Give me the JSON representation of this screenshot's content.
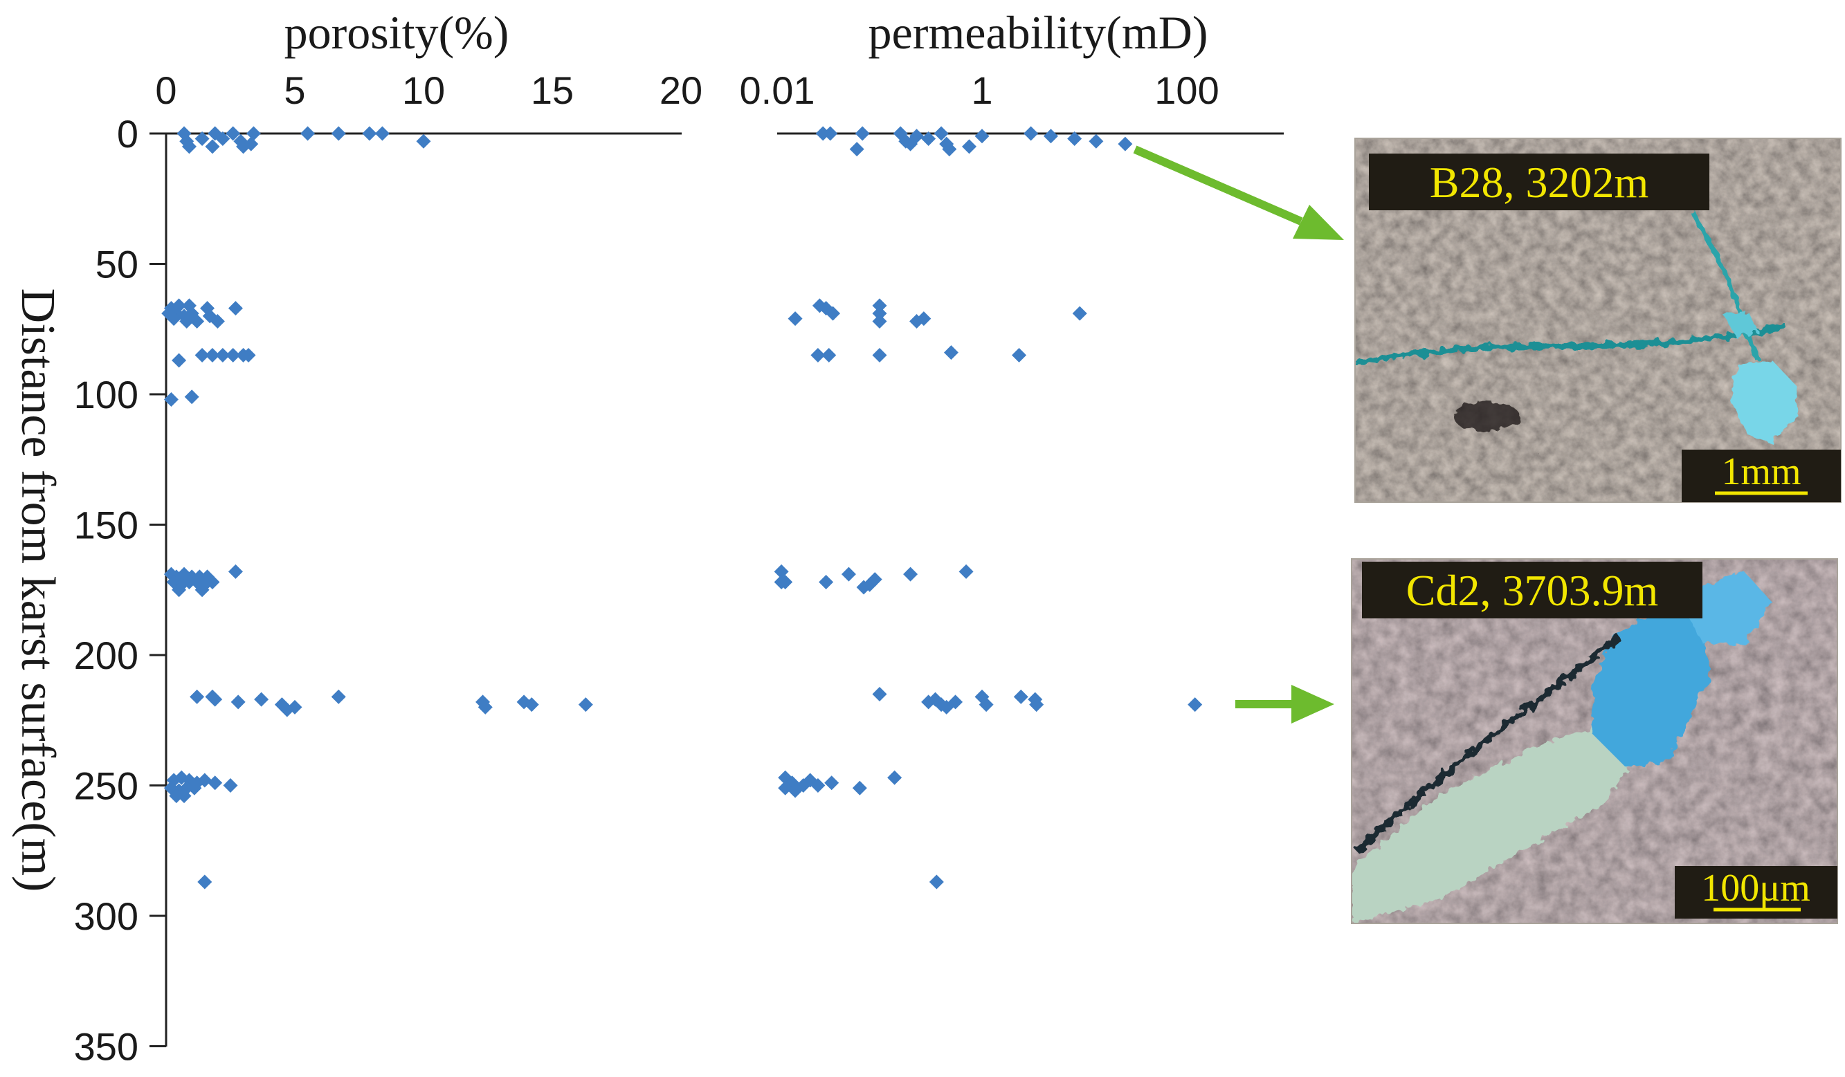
{
  "chart_data": [
    {
      "type": "scatter",
      "title": "porosity(%)",
      "xlabel": "porosity(%)",
      "ylabel": "Distance from karst surface(m)",
      "xlim": [
        0,
        20
      ],
      "ylim": [
        0,
        350
      ],
      "y_inverted": true,
      "x_ticks": [
        "0",
        "5",
        "10",
        "15",
        "20"
      ],
      "y_ticks": [
        "0",
        "50",
        "100",
        "150",
        "200",
        "250",
        "300",
        "350"
      ],
      "marker": "diamond",
      "marker_color": "#3f7dc4",
      "series": [
        {
          "points": [
            [
              0.7,
              0
            ],
            [
              1.9,
              0
            ],
            [
              2.6,
              0
            ],
            [
              3.4,
              0
            ],
            [
              5.5,
              0
            ],
            [
              6.7,
              0
            ],
            [
              7.9,
              0
            ],
            [
              8.4,
              0
            ],
            [
              0.8,
              3
            ],
            [
              1.4,
              2
            ],
            [
              2.2,
              2
            ],
            [
              2.9,
              3
            ],
            [
              10.0,
              3
            ],
            [
              0.9,
              5
            ],
            [
              1.8,
              5
            ],
            [
              3.0,
              5
            ],
            [
              3.3,
              4
            ],
            [
              0.2,
              67
            ],
            [
              0.5,
              66
            ],
            [
              0.9,
              66
            ],
            [
              1.6,
              67
            ],
            [
              2.7,
              67
            ],
            [
              0.1,
              69
            ],
            [
              0.4,
              69
            ],
            [
              0.7,
              70
            ],
            [
              1.0,
              69
            ],
            [
              1.7,
              70
            ],
            [
              0.3,
              71
            ],
            [
              0.8,
              72
            ],
            [
              1.2,
              72
            ],
            [
              2.0,
              72
            ],
            [
              1.4,
              85
            ],
            [
              1.8,
              85
            ],
            [
              2.2,
              85
            ],
            [
              2.6,
              85
            ],
            [
              3.0,
              85
            ],
            [
              3.2,
              85
            ],
            [
              0.5,
              87
            ],
            [
              0.2,
              102
            ],
            [
              1.0,
              101
            ],
            [
              0.2,
              169
            ],
            [
              0.4,
              170
            ],
            [
              0.7,
              169
            ],
            [
              1.0,
              170
            ],
            [
              1.3,
              170
            ],
            [
              1.6,
              170
            ],
            [
              2.7,
              168
            ],
            [
              0.3,
              172
            ],
            [
              0.6,
              173
            ],
            [
              0.9,
              172
            ],
            [
              1.2,
              172
            ],
            [
              1.5,
              173
            ],
            [
              1.8,
              172
            ],
            [
              0.5,
              175
            ],
            [
              1.4,
              175
            ],
            [
              1.2,
              216
            ],
            [
              1.8,
              216
            ],
            [
              1.9,
              217
            ],
            [
              2.8,
              218
            ],
            [
              3.7,
              217
            ],
            [
              4.5,
              219
            ],
            [
              5.0,
              220
            ],
            [
              4.7,
              221
            ],
            [
              6.7,
              216
            ],
            [
              12.3,
              218
            ],
            [
              12.4,
              220
            ],
            [
              13.9,
              218
            ],
            [
              14.2,
              219
            ],
            [
              16.3,
              219
            ],
            [
              0.3,
              248
            ],
            [
              0.6,
              247
            ],
            [
              0.9,
              248
            ],
            [
              1.2,
              249
            ],
            [
              1.5,
              248
            ],
            [
              1.9,
              249
            ],
            [
              2.5,
              250
            ],
            [
              0.2,
              251
            ],
            [
              0.5,
              252
            ],
            [
              0.8,
              251
            ],
            [
              1.1,
              251
            ],
            [
              0.4,
              254
            ],
            [
              0.7,
              254
            ],
            [
              1.5,
              287
            ]
          ]
        }
      ]
    },
    {
      "type": "scatter",
      "title": "permeability(mD)",
      "xlabel": "permeability(mD)",
      "ylabel": "Distance from karst surface(m)",
      "x_scale": "log",
      "xlim": [
        0.01,
        1000
      ],
      "ylim": [
        0,
        350
      ],
      "y_inverted": true,
      "x_ticks": [
        "0.01",
        "1",
        "100"
      ],
      "x_tick_values": [
        0.01,
        1,
        100
      ],
      "marker": "diamond",
      "marker_color": "#3f7dc4",
      "series": [
        {
          "points": [
            [
              0.028,
              0
            ],
            [
              0.033,
              0
            ],
            [
              0.068,
              0
            ],
            [
              0.16,
              0
            ],
            [
              0.23,
              1
            ],
            [
              0.4,
              0
            ],
            [
              1.0,
              1
            ],
            [
              3.0,
              0
            ],
            [
              4.7,
              1
            ],
            [
              8.0,
              2
            ],
            [
              13.0,
              3
            ],
            [
              25.0,
              4
            ],
            [
              0.2,
              4
            ],
            [
              0.3,
              2
            ],
            [
              0.45,
              4
            ],
            [
              0.75,
              5
            ],
            [
              0.06,
              6
            ],
            [
              0.18,
              3
            ],
            [
              0.48,
              6
            ],
            [
              0.026,
              66
            ],
            [
              0.1,
              66
            ],
            [
              0.1,
              69
            ],
            [
              0.1,
              72
            ],
            [
              0.03,
              67
            ],
            [
              0.035,
              69
            ],
            [
              0.015,
              71
            ],
            [
              0.23,
              72
            ],
            [
              0.27,
              71
            ],
            [
              9.0,
              69
            ],
            [
              0.025,
              85
            ],
            [
              0.032,
              85
            ],
            [
              0.1,
              85
            ],
            [
              0.5,
              84
            ],
            [
              2.3,
              85
            ],
            [
              0.011,
              168
            ],
            [
              0.011,
              172
            ],
            [
              0.012,
              172
            ],
            [
              0.03,
              172
            ],
            [
              0.05,
              169
            ],
            [
              0.08,
              173
            ],
            [
              0.09,
              171
            ],
            [
              0.07,
              174
            ],
            [
              0.2,
              169
            ],
            [
              0.7,
              168
            ],
            [
              0.1,
              215
            ],
            [
              0.3,
              218
            ],
            [
              0.35,
              217
            ],
            [
              0.4,
              219
            ],
            [
              0.45,
              220
            ],
            [
              0.55,
              218
            ],
            [
              1.0,
              216
            ],
            [
              1.1,
              219
            ],
            [
              2.4,
              216
            ],
            [
              3.3,
              217
            ],
            [
              3.4,
              219
            ],
            [
              120.0,
              219
            ],
            [
              0.012,
              247
            ],
            [
              0.014,
              249
            ],
            [
              0.012,
              251
            ],
            [
              0.015,
              252
            ],
            [
              0.018,
              250
            ],
            [
              0.021,
              248
            ],
            [
              0.025,
              250
            ],
            [
              0.034,
              249
            ],
            [
              0.064,
              251
            ],
            [
              0.14,
              247
            ],
            [
              0.36,
              287
            ]
          ]
        }
      ]
    }
  ],
  "insets": [
    {
      "label": "B28, 3202m",
      "scalebar": "1mm"
    },
    {
      "label": "Cd2, 3703.9m",
      "scalebar": "100μm"
    }
  ],
  "colors": {
    "marker": "#3f7dc4",
    "arrow": "#6dbb2e",
    "inset_label_text": "#f2e600",
    "inset_label_bg": "#201c14",
    "pore_blue": "#43a7dc"
  }
}
